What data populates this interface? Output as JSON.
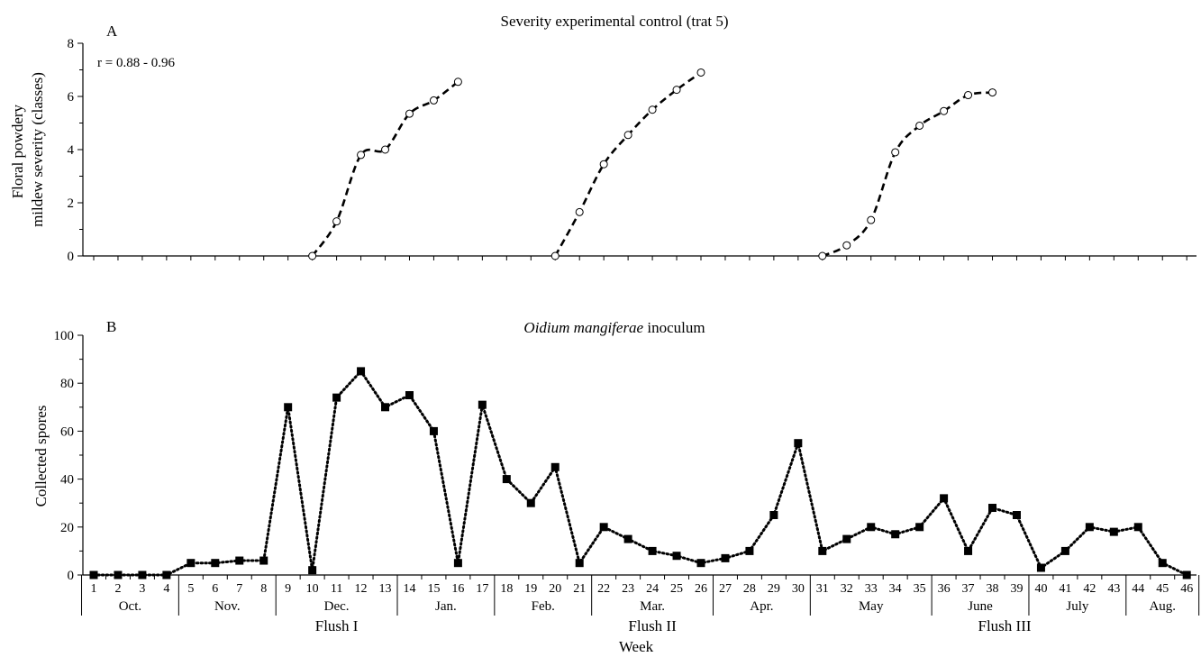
{
  "chart_data": [
    {
      "type": "line",
      "panel_label": "A",
      "title": "Severity experimental control (trat 5)",
      "ylabel": "Floral powdery\nmildew severity (classes)",
      "annotation": "r = 0.88 - 0.96",
      "ylim": [
        0,
        8
      ],
      "yticks": [
        0,
        2,
        4,
        6,
        8
      ],
      "xlim": [
        0.5,
        46.5
      ],
      "marker": "open-circle",
      "line_style": "dashed",
      "series": [
        {
          "x": [
            10,
            11,
            12,
            13,
            14,
            15,
            16
          ],
          "values": [
            0,
            1.3,
            3.8,
            4.0,
            5.35,
            5.85,
            6.55
          ]
        },
        {
          "x": [
            20,
            21,
            22,
            23,
            24,
            25,
            26
          ],
          "values": [
            0,
            1.65,
            3.45,
            4.55,
            5.5,
            6.25,
            6.9
          ]
        },
        {
          "x": [
            31,
            32,
            33,
            34,
            35,
            36,
            37,
            38
          ],
          "values": [
            0,
            0.4,
            1.35,
            3.9,
            4.9,
            5.45,
            6.05,
            6.15
          ]
        }
      ]
    },
    {
      "type": "line",
      "panel_label": "B",
      "title_italic": "Oidium mangiferae",
      "title_rest": " inoculum",
      "ylabel": "Collected spores",
      "xlabel": "Week",
      "ylim": [
        0,
        100
      ],
      "yticks": [
        0,
        20,
        40,
        60,
        80,
        100
      ],
      "marker": "filled-square",
      "line_style": "dotted",
      "x": [
        1,
        2,
        3,
        4,
        5,
        6,
        7,
        8,
        9,
        10,
        11,
        12,
        13,
        14,
        15,
        16,
        17,
        18,
        19,
        20,
        21,
        22,
        23,
        24,
        25,
        26,
        27,
        28,
        29,
        30,
        31,
        32,
        33,
        34,
        35,
        36,
        37,
        38,
        39,
        40,
        41,
        42,
        43,
        44,
        45,
        46
      ],
      "series": [
        {
          "values": [
            0,
            0,
            0,
            0,
            5,
            5,
            6,
            6,
            70,
            2,
            74,
            85,
            70,
            75,
            60,
            5,
            71,
            40,
            30,
            45,
            5,
            20,
            15,
            10,
            8,
            5,
            7,
            10,
            25,
            55,
            10,
            15,
            20,
            17,
            20,
            32,
            10,
            28,
            25,
            3,
            10,
            20,
            18,
            20,
            5,
            0
          ]
        }
      ],
      "week_labels": [
        "1",
        "2",
        "3",
        "4",
        "5",
        "6",
        "7",
        "8",
        "9",
        "10",
        "11",
        "12",
        "13",
        "14",
        "15",
        "16",
        "17",
        "18",
        "19",
        "20",
        "21",
        "22",
        "23",
        "24",
        "25",
        "26",
        "27",
        "28",
        "29",
        "30",
        "31",
        "32",
        "33",
        "34",
        "35",
        "36",
        "37",
        "38",
        "39",
        "40",
        "41",
        "42",
        "43",
        "44",
        "45",
        "46"
      ],
      "months": [
        {
          "label": "Oct.",
          "start": 1,
          "end": 4
        },
        {
          "label": "Nov.",
          "start": 5,
          "end": 8
        },
        {
          "label": "Dec.",
          "start": 9,
          "end": 13
        },
        {
          "label": "Jan.",
          "start": 14,
          "end": 17
        },
        {
          "label": "Feb.",
          "start": 18,
          "end": 21
        },
        {
          "label": "Mar.",
          "start": 22,
          "end": 26
        },
        {
          "label": "Apr.",
          "start": 27,
          "end": 30
        },
        {
          "label": "May",
          "start": 31,
          "end": 35
        },
        {
          "label": "June",
          "start": 36,
          "end": 39
        },
        {
          "label": "July",
          "start": 40,
          "end": 43
        },
        {
          "label": "Aug.",
          "start": 44,
          "end": 46
        }
      ],
      "flushes": [
        {
          "label": "Flush I",
          "start": 5,
          "end": 17
        },
        {
          "label": "Flush II",
          "start": 18,
          "end": 30
        },
        {
          "label": "Flush III",
          "start": 31,
          "end": 46
        }
      ]
    }
  ]
}
